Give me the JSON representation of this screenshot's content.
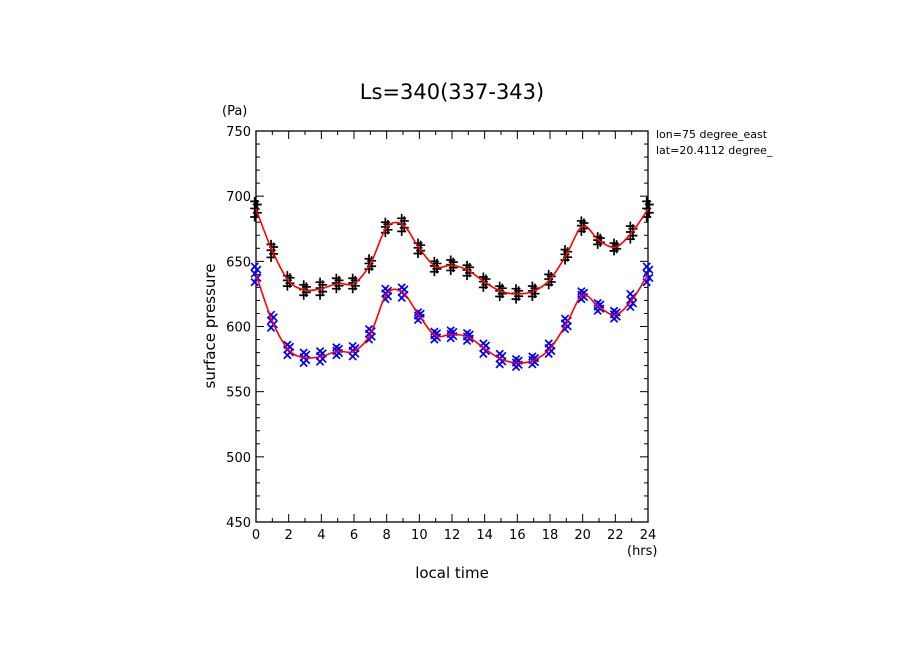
{
  "chart_data": {
    "type": "scatter",
    "title": "Ls=340(337-343)",
    "xlabel": "local time",
    "ylabel": "surface pressure",
    "x_unit": "(hrs)",
    "y_unit": "(Pa)",
    "xlim": [
      0,
      24
    ],
    "ylim": [
      450,
      750
    ],
    "xticks": [
      0,
      2,
      4,
      6,
      8,
      10,
      12,
      14,
      16,
      18,
      20,
      22,
      24
    ],
    "yticks": [
      450,
      500,
      550,
      600,
      650,
      700,
      750
    ],
    "annotations": [
      "lon=75 degree_east",
      "lat=20.4112 degree_"
    ],
    "hours": [
      0,
      1,
      2,
      3,
      4,
      5,
      6,
      7,
      8,
      9,
      10,
      11,
      12,
      13,
      14,
      15,
      16,
      17,
      18,
      19,
      20,
      21,
      22,
      23,
      24
    ],
    "series": [
      {
        "marker": "plus",
        "color": "#000000",
        "fit_color": "#ff0000",
        "mean": [
          690,
          658,
          635,
          628,
          629,
          633,
          633,
          648,
          676,
          678,
          660,
          646,
          647,
          643,
          634,
          627,
          625,
          627,
          636,
          655,
          677,
          666,
          661,
          672,
          690
        ],
        "spread": [
          6,
          5,
          4,
          4,
          5,
          4,
          4,
          4,
          4,
          5,
          4,
          4,
          4,
          4,
          4,
          4,
          4,
          4,
          4,
          4,
          4,
          3,
          3,
          5,
          6
        ]
      },
      {
        "marker": "x",
        "color": "#0000ff",
        "fit_color": "#ff0000",
        "mean": [
          640,
          604,
          582,
          576,
          577,
          581,
          581,
          594,
          625,
          626,
          608,
          593,
          594,
          592,
          583,
          575,
          572,
          574,
          583,
          602,
          624,
          615,
          609,
          620,
          640
        ],
        "spread": [
          6,
          5,
          4,
          4,
          4,
          3,
          4,
          4,
          4,
          4,
          3,
          3,
          3,
          3,
          4,
          4,
          3,
          3,
          4,
          4,
          3,
          3,
          3,
          5,
          6
        ]
      }
    ]
  }
}
